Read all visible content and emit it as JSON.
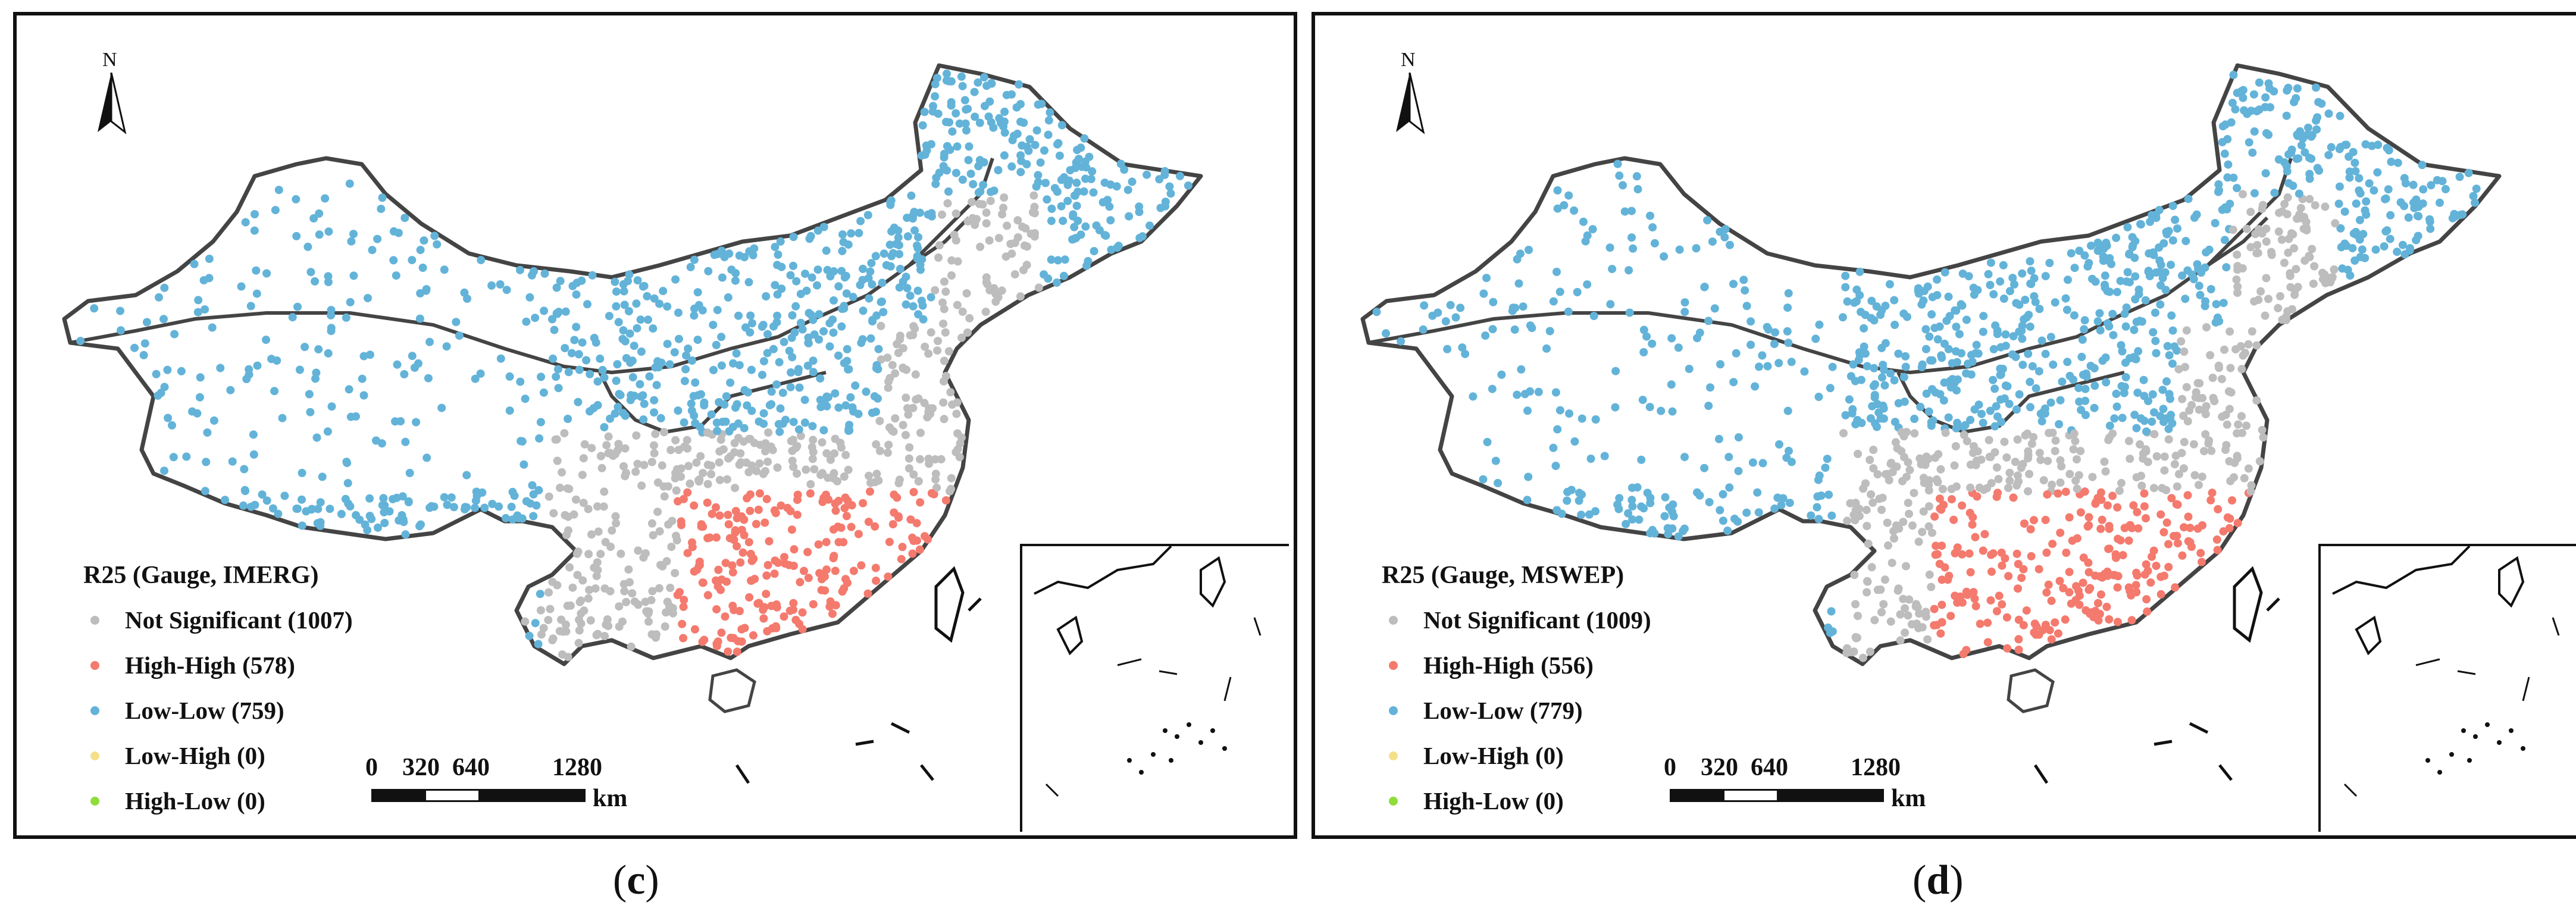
{
  "colors": {
    "not_significant": "#bdbdbd",
    "high_high": "#f47a6e",
    "low_low": "#63b3d9",
    "low_high": "#f5e08a",
    "high_low": "#8fdc3a",
    "outline": "#444444"
  },
  "north_label": "N",
  "scale_bar": {
    "ticks": [
      "0",
      "320",
      "640",
      "1280"
    ],
    "unit": "km"
  },
  "panels": [
    {
      "id": "c",
      "caption_open": "(",
      "caption_letter": "c",
      "caption_close": ")",
      "legend_title": "R25 (Gauge, IMERG)",
      "legend": [
        {
          "label": "Not Significant (1007)",
          "category": "not_significant"
        },
        {
          "label": "High-High (578)",
          "category": "high_high"
        },
        {
          "label": "Low-Low (759)",
          "category": "low_low"
        },
        {
          "label": "Low-High (0)",
          "category": "low_high"
        },
        {
          "label": "High-Low (0)",
          "category": "high_low"
        }
      ],
      "counts": {
        "not_significant": 1007,
        "high_high": 578,
        "low_low": 759,
        "low_high": 0,
        "high_low": 0
      }
    },
    {
      "id": "d",
      "caption_open": "(",
      "caption_letter": "d",
      "caption_close": ")",
      "legend_title": "R25 (Gauge, MSWEP)",
      "legend": [
        {
          "label": "Not Significant (1009)",
          "category": "not_significant"
        },
        {
          "label": "High-High (556)",
          "category": "high_high"
        },
        {
          "label": "Low-Low (779)",
          "category": "low_low"
        },
        {
          "label": "Low-High (0)",
          "category": "low_high"
        },
        {
          "label": "High-Low (0)",
          "category": "high_low"
        }
      ],
      "counts": {
        "not_significant": 1009,
        "high_high": 556,
        "low_low": 779,
        "low_high": 0,
        "high_low": 0
      }
    }
  ]
}
